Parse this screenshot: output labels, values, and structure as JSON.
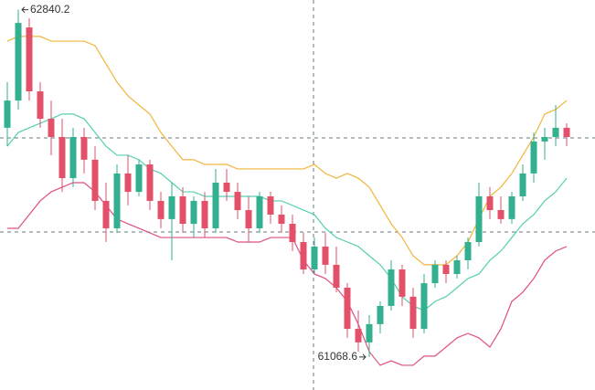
{
  "chart_data": {
    "type": "candlestick",
    "ylim": [
      60900,
      62890
    ],
    "up_color": "#33b08f",
    "down_color": "#e2506a",
    "open": [
      62238,
      62377,
      62750,
      62424,
      62284,
      62191,
      61981,
      62191,
      62075,
      61865,
      61725,
      62005,
      61911,
      62051,
      61865,
      61772,
      61888,
      61748,
      61865,
      61725,
      61958,
      61911,
      61818,
      61725,
      61888,
      61795,
      61748,
      61655,
      61515,
      61632,
      61539,
      61422,
      61212,
      61143,
      61236,
      61329,
      61515,
      61376,
      61212,
      61445,
      61539,
      61492,
      61562,
      61655,
      61888,
      61818,
      61772,
      61888,
      62005,
      62168,
      62191,
      62238
    ],
    "high": [
      62471,
      62840.2,
      62797,
      62471,
      62377,
      62284,
      62238,
      62238,
      62144,
      61958,
      62051,
      62098,
      62075,
      62075,
      61911,
      61958,
      61935,
      61888,
      61911,
      62028,
      62028,
      61958,
      61888,
      61911,
      61911,
      61842,
      61795,
      61702,
      61678,
      61702,
      61632,
      61445,
      61306,
      61282,
      61352,
      61562,
      61539,
      61422,
      61492,
      61562,
      61562,
      61585,
      61678,
      61958,
      61935,
      61888,
      61911,
      62051,
      62214,
      62238,
      62354,
      62261
    ],
    "low": [
      62144,
      62331,
      62377,
      62238,
      62098,
      61911,
      61935,
      62005,
      61818,
      61655,
      61702,
      61842,
      61888,
      61818,
      61725,
      61562,
      61702,
      61678,
      61678,
      61702,
      61865,
      61772,
      61655,
      61702,
      61748,
      61702,
      61609,
      61492,
      61492,
      61492,
      61399,
      61166,
      61096,
      61068.6,
      61189,
      61306,
      61329,
      61166,
      61189,
      61422,
      61445,
      61469,
      61515,
      61632,
      61772,
      61748,
      61748,
      61865,
      61958,
      62075,
      62144,
      62144
    ],
    "close": [
      62377,
      62773,
      62424,
      62284,
      62191,
      61981,
      62191,
      62075,
      61865,
      61725,
      62005,
      61911,
      62051,
      61865,
      61772,
      61888,
      61748,
      61865,
      61725,
      61958,
      61911,
      61818,
      61725,
      61888,
      61795,
      61748,
      61655,
      61515,
      61632,
      61539,
      61422,
      61212,
      61143,
      61236,
      61329,
      61515,
      61376,
      61212,
      61445,
      61539,
      61492,
      61562,
      61655,
      61888,
      61818,
      61772,
      61888,
      62005,
      62168,
      62191,
      62238,
      62191
    ],
    "bands": [
      {
        "color": "#f0b63c",
        "values": [
          62680,
          62704,
          62704,
          62704,
          62680,
          62680,
          62680,
          62680,
          62657,
          62564,
          62471,
          62401,
          62354,
          62308,
          62214,
          62144,
          62075,
          62075,
          62051,
          62051,
          62051,
          62028,
          62028,
          62028,
          62028,
          62028,
          62028,
          62028,
          62051,
          62005,
          61981,
          62005,
          61981,
          61935,
          61842,
          61748,
          61678,
          61585,
          61539,
          61539,
          61539,
          61585,
          61655,
          61772,
          61888,
          61935,
          62005,
          62098,
          62191,
          62308,
          62331,
          62377
        ]
      },
      {
        "color": "#55d0b0",
        "values": [
          62144,
          62214,
          62238,
          62261,
          62284,
          62308,
          62308,
          62284,
          62214,
          62144,
          62098,
          62098,
          62075,
          62028,
          62005,
          61958,
          61911,
          61911,
          61888,
          61888,
          61888,
          61888,
          61888,
          61888,
          61865,
          61865,
          61842,
          61818,
          61795,
          61725,
          61678,
          61655,
          61632,
          61585,
          61539,
          61469,
          61376,
          61329,
          61306,
          61352,
          61376,
          61422,
          61469,
          61492,
          61562,
          61609,
          61678,
          61748,
          61795,
          61865,
          61911,
          61981
        ]
      },
      {
        "color": "#de4f87",
        "values": [
          61725,
          61725,
          61795,
          61865,
          61911,
          61935,
          61958,
          61958,
          61911,
          61842,
          61772,
          61748,
          61725,
          61702,
          61678,
          61678,
          61678,
          61678,
          61678,
          61678,
          61678,
          61655,
          61655,
          61655,
          61678,
          61678,
          61678,
          61562,
          61492,
          61469,
          61422,
          61352,
          61236,
          61096,
          61026,
          61049,
          61026,
          61026,
          61073,
          61073,
          61119,
          61166,
          61189,
          61166,
          61119,
          61212,
          61352,
          61399,
          61469,
          61562,
          61609,
          61632
        ]
      }
    ]
  }
}
